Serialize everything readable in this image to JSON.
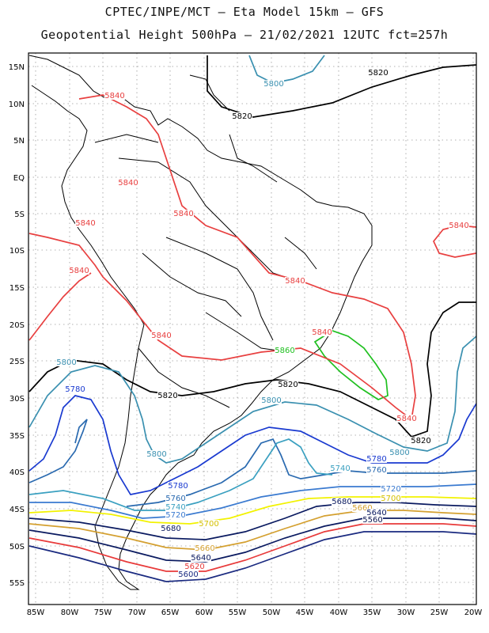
{
  "header": {
    "line1": "CPTEC/INPE/MCT –  Eta Model 15km – GFS",
    "line2": "Geopotential Height 500hPa – 21/02/2021 12UTC fct=257h"
  },
  "axes": {
    "lat_labels": [
      "15N",
      "10N",
      "5N",
      "EQ",
      "5S",
      "10S",
      "15S",
      "20S",
      "25S",
      "30S",
      "35S",
      "40S",
      "45S",
      "50S",
      "55S"
    ],
    "lon_labels": [
      "85W",
      "80W",
      "75W",
      "70W",
      "65W",
      "60W",
      "55W",
      "50W",
      "45W",
      "40W",
      "35W",
      "30W",
      "25W",
      "20W"
    ],
    "grid": true
  },
  "colors": {
    "c5560": "#0a1450",
    "c5600": "#1a2a80",
    "c5620": "#e83a3a",
    "c5640": "#0a1a60",
    "c5660": "#d4a030",
    "c5680": "#0a1a60",
    "c5700": "#f2f200",
    "c5720": "#3a7ad0",
    "c5740": "#3aa0c0",
    "c5760": "#2a6ab0",
    "c5780": "#1a3ad0",
    "c5800": "#3a90b0",
    "c5820": "#000000",
    "c5840": "#e84040",
    "c5860": "#20c020",
    "land": "#000000"
  },
  "contour_labels": [
    {
      "text": "5820",
      "color": "#000000"
    },
    {
      "text": "5820",
      "color": "#000000"
    },
    {
      "text": "5800",
      "color": "#3a90b0"
    },
    {
      "text": "5840",
      "color": "#e84040"
    },
    {
      "text": "5840",
      "color": "#e84040"
    },
    {
      "text": "5840",
      "color": "#e84040"
    },
    {
      "text": "5840",
      "color": "#e84040"
    },
    {
      "text": "5840",
      "color": "#e84040"
    },
    {
      "text": "5840",
      "color": "#e84040"
    },
    {
      "text": "5840",
      "color": "#e84040"
    },
    {
      "text": "5840",
      "color": "#e84040"
    },
    {
      "text": "5840",
      "color": "#e84040"
    },
    {
      "text": "5860",
      "color": "#20c020"
    },
    {
      "text": "5800",
      "color": "#3a90b0"
    },
    {
      "text": "5780",
      "color": "#1a3ad0"
    },
    {
      "text": "5820",
      "color": "#000000"
    },
    {
      "text": "5820",
      "color": "#000000"
    },
    {
      "text": "5800",
      "color": "#3a90b0"
    },
    {
      "text": "5840",
      "color": "#e84040"
    },
    {
      "text": "5820",
      "color": "#000000"
    },
    {
      "text": "5800",
      "color": "#3a90b0"
    },
    {
      "text": "5800",
      "color": "#3a90b0"
    },
    {
      "text": "5780",
      "color": "#1a3ad0"
    },
    {
      "text": "5760",
      "color": "#2a6ab0"
    },
    {
      "text": "5740",
      "color": "#3aa0c0"
    },
    {
      "text": "5720",
      "color": "#3a7ad0"
    },
    {
      "text": "5700",
      "color": "#d4c000"
    },
    {
      "text": "5780",
      "color": "#1a3ad0"
    },
    {
      "text": "5760",
      "color": "#2a6ab0"
    },
    {
      "text": "5740",
      "color": "#3aa0c0"
    },
    {
      "text": "5720",
      "color": "#3a7ad0"
    },
    {
      "text": "5700",
      "color": "#d4c000"
    },
    {
      "text": "5680",
      "color": "#0a1a60"
    },
    {
      "text": "5660",
      "color": "#d4a030"
    },
    {
      "text": "5640",
      "color": "#0a1a60"
    },
    {
      "text": "5560",
      "color": "#0a1450"
    },
    {
      "text": "5680",
      "color": "#0a1a60"
    },
    {
      "text": "5660",
      "color": "#d4a030"
    },
    {
      "text": "5640",
      "color": "#0a1a60"
    },
    {
      "text": "5620",
      "color": "#e83a3a"
    },
    {
      "text": "5600",
      "color": "#1a2a80"
    }
  ]
}
